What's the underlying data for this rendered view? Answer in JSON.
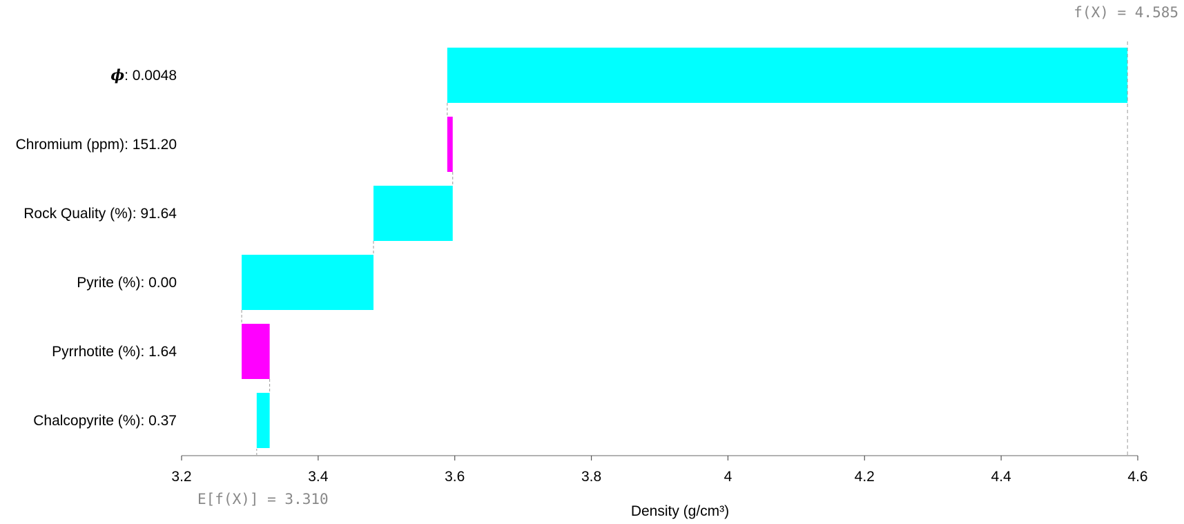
{
  "chart_data": {
    "type": "bar",
    "subtype": "waterfall",
    "orientation": "horizontal",
    "xlabel": "Density (g/cm³)",
    "xlim": [
      3.2,
      4.6
    ],
    "xticks": [
      3.2,
      3.4,
      3.6,
      3.8,
      4.0,
      4.2,
      4.4,
      4.6
    ],
    "xtick_labels": [
      "3.2",
      "3.4",
      "3.6",
      "3.8",
      "4",
      "4.2",
      "4.4",
      "4.6"
    ],
    "grid": false,
    "base_value": 3.31,
    "base_label": "E[f(X)] = 3.310",
    "output_value": 4.585,
    "output_label": "f(X) = 4.585",
    "colors": {
      "positive": "#00ffff",
      "negative": "#ff00ff",
      "axis": "#999999",
      "annotation": "#888888"
    },
    "features": [
      {
        "symbol": "𝝓",
        "label": ": 0.0048",
        "start": 3.589,
        "end": 4.585,
        "contribution": 0.996
      },
      {
        "symbol": "",
        "label": "Chromium (ppm): 151.20",
        "start": 3.597,
        "end": 3.589,
        "contribution": -0.008
      },
      {
        "symbol": "",
        "label": "Rock Quality (%): 91.64",
        "start": 3.481,
        "end": 3.597,
        "contribution": 0.116
      },
      {
        "symbol": "",
        "label": "Pyrite (%): 0.00",
        "start": 3.288,
        "end": 3.481,
        "contribution": 0.193
      },
      {
        "symbol": "",
        "label": "Pyrrhotite (%): 1.64",
        "start": 3.329,
        "end": 3.288,
        "contribution": -0.041
      },
      {
        "symbol": "",
        "label": "Chalcopyrite (%): 0.37",
        "start": 3.31,
        "end": 3.329,
        "contribution": 0.019
      }
    ]
  }
}
